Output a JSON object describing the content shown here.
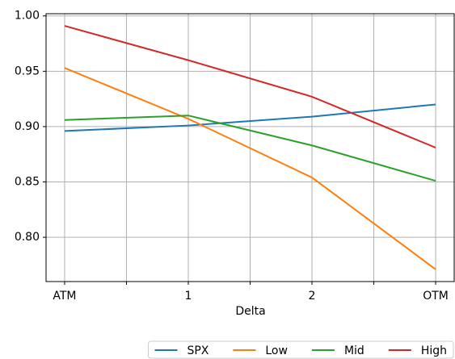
{
  "chart_data": {
    "type": "line",
    "x_label": "Delta",
    "categories": [
      "ATM",
      "1",
      "2",
      "OTM"
    ],
    "series": [
      {
        "name": "SPX",
        "color": "#1f77b4",
        "values": [
          0.896,
          0.901,
          0.909,
          0.92
        ]
      },
      {
        "name": "Low",
        "color": "#ff7f0e",
        "values": [
          0.953,
          0.907,
          0.854,
          0.771
        ]
      },
      {
        "name": "Mid",
        "color": "#2ca02c",
        "values": [
          0.906,
          0.91,
          0.883,
          0.851
        ]
      },
      {
        "name": "High",
        "color": "#d62728",
        "values": [
          0.991,
          0.96,
          0.927,
          0.881
        ]
      }
    ],
    "ylim": [
      0.76,
      1.002
    ],
    "yticks": [
      {
        "value": 0.8,
        "label": "0.80"
      },
      {
        "value": 0.85,
        "label": "0.85"
      },
      {
        "value": 0.9,
        "label": "0.90"
      },
      {
        "value": 0.95,
        "label": "0.95"
      },
      {
        "value": 1.0,
        "label": "1.00"
      }
    ],
    "grid": true,
    "legend": "bottom-right"
  }
}
